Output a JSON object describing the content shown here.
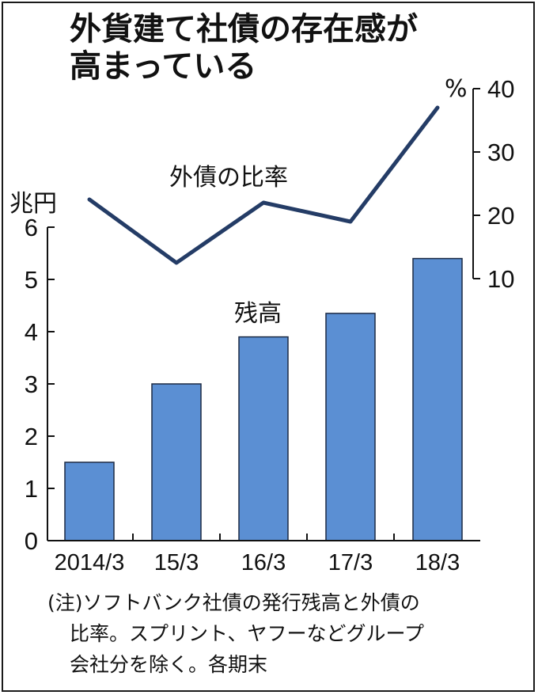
{
  "title_lines": [
    "外貨建て社債の存在感が",
    "高まっている"
  ],
  "note_lines": [
    "(注)ソフトバンク社債の発行残高と外債の",
    "比率。スプリント、ヤフーなどグループ",
    "会社分を除く。各期末"
  ],
  "colors": {
    "bar": "#5b8fd3",
    "bar_edge": "#1c2a44",
    "line": "#243c66",
    "axis": "#111111"
  },
  "chart_data": {
    "type": "bar",
    "categories": [
      "2014/3",
      "15/3",
      "16/3",
      "17/3",
      "18/3"
    ],
    "series": [
      {
        "name": "残高",
        "type": "bar",
        "axis": "left",
        "values": [
          1.5,
          3.0,
          3.9,
          4.35,
          5.4
        ]
      },
      {
        "name": "外債の比率",
        "type": "line",
        "axis": "right",
        "values": [
          22.5,
          12.5,
          22,
          19,
          37
        ]
      }
    ],
    "left_axis": {
      "unit": "兆円",
      "ylim": [
        0,
        6
      ],
      "ticks": [
        "0",
        "1",
        "2",
        "3",
        "4",
        "5",
        "6"
      ]
    },
    "right_axis": {
      "unit": "%",
      "ylim": [
        10,
        40
      ],
      "ticks": [
        "10",
        "20",
        "30",
        "40"
      ]
    },
    "grid": false
  }
}
